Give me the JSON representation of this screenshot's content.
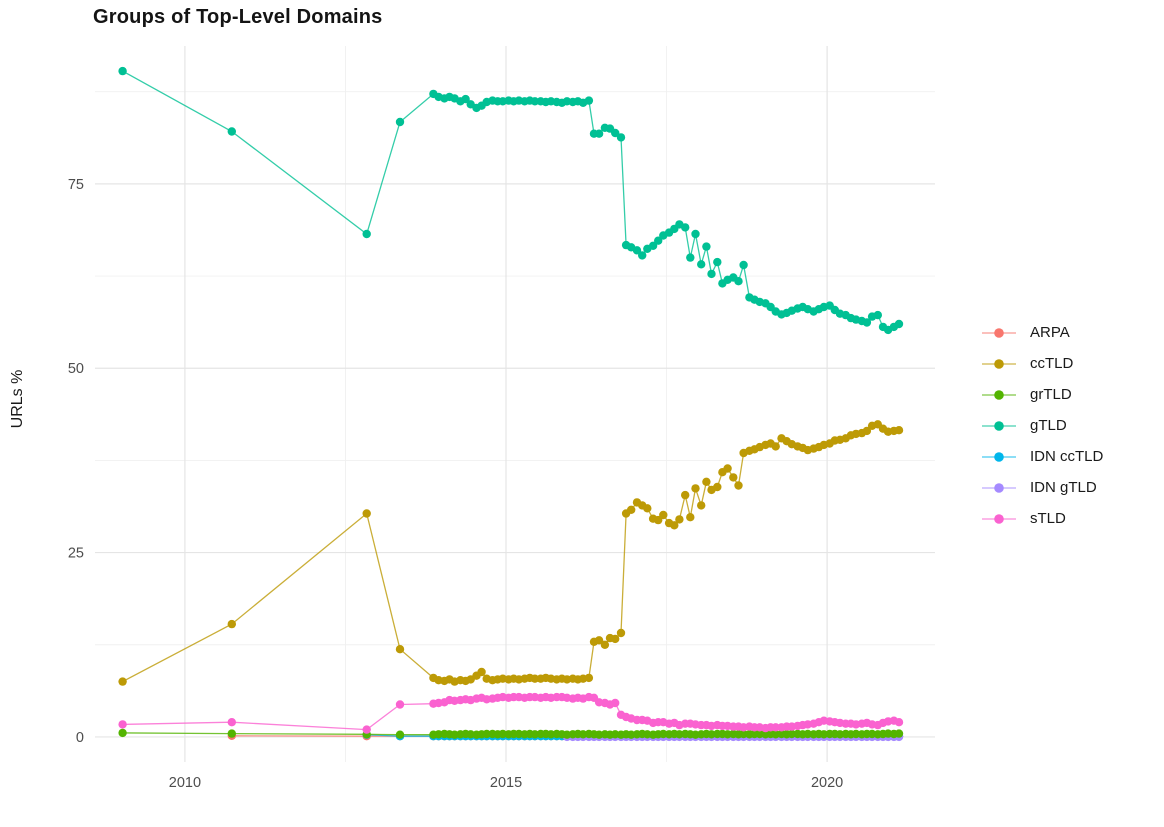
{
  "chart_data": {
    "type": "line",
    "title": "Groups of Top-Level Domains",
    "xlabel": "",
    "ylabel": "URLs %",
    "legend_position": "right",
    "grid": true,
    "axes": {
      "xlim": [
        2008.6,
        2021.68
      ],
      "ylim": [
        -3.4,
        93.7
      ],
      "x_ticks": {
        "values": [
          2010,
          2015,
          2020
        ],
        "labels": [
          "2010",
          "2015",
          "2020"
        ]
      },
      "y_ticks": {
        "values": [
          0,
          25,
          50,
          75
        ],
        "labels": [
          "0",
          "25",
          "50",
          "75"
        ]
      },
      "minor_x": [
        2012.5,
        2017.5
      ],
      "minor_y": [
        12.5,
        37.5,
        62.5,
        87.5
      ]
    },
    "draw_order": [
      "ARPA",
      "IDN ccTLD",
      "IDN gTLD",
      "grTLD",
      "ccTLD",
      "gTLD",
      "sTLD"
    ],
    "x": [
      2009.03,
      2010.73,
      2012.83,
      2013.35,
      2013.87,
      2013.95,
      2014.04,
      2014.12,
      2014.2,
      2014.29,
      2014.37,
      2014.45,
      2014.54,
      2014.62,
      2014.7,
      2014.79,
      2014.87,
      2014.95,
      2015.04,
      2015.12,
      2015.2,
      2015.29,
      2015.37,
      2015.45,
      2015.54,
      2015.62,
      2015.7,
      2015.79,
      2015.87,
      2015.95,
      2016.04,
      2016.12,
      2016.2,
      2016.29,
      2016.37,
      2016.45,
      2016.54,
      2016.62,
      2016.7,
      2016.79,
      2016.87,
      2016.95,
      2017.04,
      2017.12,
      2017.2,
      2017.29,
      2017.37,
      2017.45,
      2017.54,
      2017.62,
      2017.7,
      2017.79,
      2017.87,
      2017.95,
      2018.04,
      2018.12,
      2018.2,
      2018.29,
      2018.37,
      2018.45,
      2018.54,
      2018.62,
      2018.7,
      2018.79,
      2018.87,
      2018.95,
      2019.04,
      2019.12,
      2019.2,
      2019.29,
      2019.37,
      2019.45,
      2019.54,
      2019.62,
      2019.7,
      2019.79,
      2019.87,
      2019.95,
      2020.04,
      2020.12,
      2020.2,
      2020.29,
      2020.37,
      2020.45,
      2020.54,
      2020.62,
      2020.7,
      2020.79,
      2020.87,
      2020.95,
      2021.04,
      2021.12
    ],
    "series": [
      {
        "name": "ARPA",
        "color": "#F8766D",
        "y": [
          null,
          0.15,
          0.1,
          0.1,
          0.1,
          0.1,
          0.1,
          0.1,
          0.1,
          0.1,
          0.1,
          0.1,
          0.1,
          0.1,
          0.1,
          0.1,
          0.1,
          0.1,
          0.1,
          0.1,
          0.1,
          0.1,
          0.1,
          0.1,
          0.1,
          0.1,
          0.1,
          0.1,
          0.1,
          0.1,
          0.1,
          0.1,
          0.1,
          0.1,
          0.1,
          0.1,
          0.1,
          0.1,
          0.1,
          0.1,
          0.1,
          0.1,
          0.1,
          0.1,
          0.1,
          0.1,
          0.1,
          0.1,
          0.1,
          0.1,
          0.1,
          0.1,
          0.1,
          0.1,
          0.1,
          0.1,
          0.1,
          0.1,
          0.1,
          0.1,
          0.1,
          0.1,
          0.1,
          0.1,
          0.1,
          0.1,
          0.1,
          0.1,
          0.1,
          0.1,
          0.1,
          0.1,
          0.1,
          0.1,
          0.1,
          0.1,
          0.1,
          0.1,
          0.1,
          0.1,
          0.1,
          0.1,
          0.1,
          0.1,
          0.1,
          0.1,
          0.1,
          0.1,
          0.1,
          0.1,
          0.1,
          0.1
        ]
      },
      {
        "name": "ccTLD",
        "color": "#BD9A06",
        "y": [
          7.5,
          15.3,
          30.3,
          11.9,
          8.0,
          7.7,
          7.6,
          7.8,
          7.5,
          7.7,
          7.6,
          7.8,
          8.3,
          8.8,
          7.9,
          7.7,
          7.8,
          7.9,
          7.8,
          7.9,
          7.8,
          7.9,
          8.0,
          7.9,
          7.9,
          8.0,
          7.9,
          7.8,
          7.9,
          7.8,
          7.9,
          7.8,
          7.9,
          8.0,
          12.9,
          13.1,
          12.5,
          13.4,
          13.3,
          14.1,
          30.3,
          30.8,
          31.8,
          31.4,
          31.0,
          29.6,
          29.4,
          30.1,
          29.0,
          28.7,
          29.5,
          32.8,
          29.8,
          33.7,
          31.4,
          34.6,
          33.5,
          33.9,
          35.9,
          36.4,
          35.2,
          34.1,
          38.5,
          38.8,
          39.0,
          39.3,
          39.6,
          39.8,
          39.4,
          40.5,
          40.1,
          39.7,
          39.4,
          39.2,
          38.9,
          39.1,
          39.3,
          39.6,
          39.8,
          40.2,
          40.3,
          40.5,
          40.9,
          41.1,
          41.2,
          41.5,
          42.2,
          42.4,
          41.8,
          41.4,
          41.5,
          41.6
        ]
      },
      {
        "name": "grTLD",
        "color": "#53B400",
        "y": [
          0.55,
          0.45,
          0.35,
          0.3,
          0.3,
          0.35,
          0.4,
          0.35,
          0.3,
          0.35,
          0.4,
          0.35,
          0.3,
          0.35,
          0.4,
          0.4,
          0.35,
          0.4,
          0.35,
          0.4,
          0.4,
          0.35,
          0.4,
          0.35,
          0.4,
          0.4,
          0.35,
          0.4,
          0.35,
          0.3,
          0.35,
          0.4,
          0.35,
          0.4,
          0.35,
          0.3,
          0.35,
          0.3,
          0.35,
          0.3,
          0.35,
          0.3,
          0.35,
          0.4,
          0.35,
          0.3,
          0.35,
          0.4,
          0.35,
          0.4,
          0.35,
          0.4,
          0.35,
          0.3,
          0.35,
          0.4,
          0.35,
          0.4,
          0.4,
          0.35,
          0.4,
          0.35,
          0.4,
          0.35,
          0.4,
          0.4,
          0.35,
          0.4,
          0.35,
          0.4,
          0.35,
          0.4,
          0.4,
          0.35,
          0.4,
          0.35,
          0.4,
          0.35,
          0.4,
          0.4,
          0.35,
          0.4,
          0.35,
          0.4,
          0.35,
          0.4,
          0.4,
          0.35,
          0.4,
          0.45,
          0.4,
          0.45
        ]
      },
      {
        "name": "gTLD",
        "color": "#00C094",
        "y": [
          90.3,
          82.1,
          68.2,
          83.4,
          87.2,
          86.8,
          86.6,
          86.8,
          86.6,
          86.2,
          86.5,
          85.8,
          85.3,
          85.6,
          86.1,
          86.3,
          86.2,
          86.2,
          86.3,
          86.2,
          86.3,
          86.2,
          86.3,
          86.2,
          86.2,
          86.1,
          86.2,
          86.1,
          86.0,
          86.2,
          86.1,
          86.2,
          86.0,
          86.3,
          81.8,
          81.8,
          82.6,
          82.5,
          81.9,
          81.3,
          66.7,
          66.4,
          66.0,
          65.3,
          66.2,
          66.6,
          67.3,
          68.0,
          68.4,
          68.9,
          69.5,
          69.1,
          65.0,
          68.2,
          64.1,
          66.5,
          62.8,
          64.4,
          61.5,
          62.0,
          62.3,
          61.8,
          64.0,
          59.6,
          59.3,
          59.0,
          58.8,
          58.3,
          57.7,
          57.3,
          57.5,
          57.8,
          58.1,
          58.3,
          58.0,
          57.7,
          58.0,
          58.3,
          58.5,
          57.9,
          57.4,
          57.2,
          56.8,
          56.6,
          56.4,
          56.2,
          57.0,
          57.2,
          55.6,
          55.2,
          55.6,
          56.0
        ]
      },
      {
        "name": "IDN ccTLD",
        "color": "#00B6EB",
        "y": [
          null,
          null,
          0.3,
          0.1,
          0.1,
          0.1,
          0.1,
          0.1,
          0.1,
          0.1,
          0.1,
          0.1,
          0.1,
          0.1,
          0.1,
          0.1,
          0.1,
          0.1,
          0.1,
          0.1,
          0.1,
          0.1,
          0.1,
          0.1,
          0.1,
          0.1,
          0.1,
          0.1,
          0.1,
          0.1,
          0.1,
          0.1,
          0.1,
          0.1,
          0.1,
          0.1,
          0.1,
          0.1,
          0.1,
          0.1,
          0.1,
          0.1,
          0.1,
          0.1,
          0.1,
          0.1,
          0.1,
          0.1,
          0.1,
          0.1,
          0.1,
          0.1,
          0.1,
          0.1,
          0.1,
          0.1,
          0.1,
          0.1,
          0.1,
          0.1,
          0.1,
          0.1,
          0.1,
          0.1,
          0.1,
          0.1,
          0.1,
          0.1,
          0.1,
          0.1,
          0.1,
          0.1,
          0.1,
          0.1,
          0.1,
          0.1,
          0.1,
          0.1,
          0.1,
          0.1,
          0.1,
          0.1,
          0.1,
          0.1,
          0.1,
          0.1,
          0.1,
          0.1,
          0.1,
          0.1,
          0.1,
          0.1
        ]
      },
      {
        "name": "IDN gTLD",
        "color": "#A58AFF",
        "y": [
          null,
          null,
          null,
          null,
          null,
          null,
          null,
          null,
          null,
          null,
          null,
          null,
          null,
          null,
          null,
          null,
          null,
          null,
          null,
          null,
          null,
          null,
          null,
          null,
          null,
          null,
          null,
          null,
          null,
          0.0,
          0.0,
          0.0,
          0.0,
          0.0,
          0.0,
          0.0,
          0.0,
          0.0,
          0.0,
          0.0,
          0.0,
          0.0,
          0.0,
          0.0,
          0.0,
          0.0,
          0.0,
          0.0,
          0.0,
          0.0,
          0.0,
          0.0,
          0.0,
          0.0,
          0.0,
          0.0,
          0.0,
          0.0,
          0.0,
          0.0,
          0.0,
          0.0,
          0.0,
          0.0,
          0.0,
          0.0,
          0.0,
          0.0,
          0.0,
          0.0,
          0.0,
          0.0,
          0.0,
          0.0,
          0.0,
          0.0,
          0.0,
          0.0,
          0.0,
          0.0,
          0.0,
          0.0,
          0.0,
          0.0,
          0.0,
          0.0,
          0.0,
          0.0,
          0.0,
          0.0,
          0.0,
          0.0
        ]
      },
      {
        "name": "sTLD",
        "color": "#FA62D0",
        "y": [
          1.7,
          2.0,
          1.0,
          4.4,
          4.5,
          4.6,
          4.7,
          5.0,
          4.9,
          5.0,
          5.1,
          5.0,
          5.2,
          5.3,
          5.1,
          5.2,
          5.3,
          5.4,
          5.3,
          5.4,
          5.4,
          5.3,
          5.4,
          5.4,
          5.3,
          5.4,
          5.3,
          5.4,
          5.4,
          5.3,
          5.2,
          5.3,
          5.2,
          5.4,
          5.3,
          4.7,
          4.6,
          4.4,
          4.6,
          3.0,
          2.7,
          2.5,
          2.3,
          2.3,
          2.2,
          1.9,
          2.0,
          2.0,
          1.8,
          1.9,
          1.6,
          1.8,
          1.8,
          1.7,
          1.6,
          1.6,
          1.5,
          1.6,
          1.5,
          1.5,
          1.4,
          1.4,
          1.3,
          1.4,
          1.3,
          1.3,
          1.2,
          1.3,
          1.3,
          1.3,
          1.4,
          1.4,
          1.5,
          1.6,
          1.7,
          1.8,
          2.0,
          2.2,
          2.1,
          2.0,
          1.9,
          1.8,
          1.8,
          1.7,
          1.8,
          1.9,
          1.7,
          1.6,
          1.9,
          2.1,
          2.2,
          2.0
        ]
      }
    ]
  }
}
